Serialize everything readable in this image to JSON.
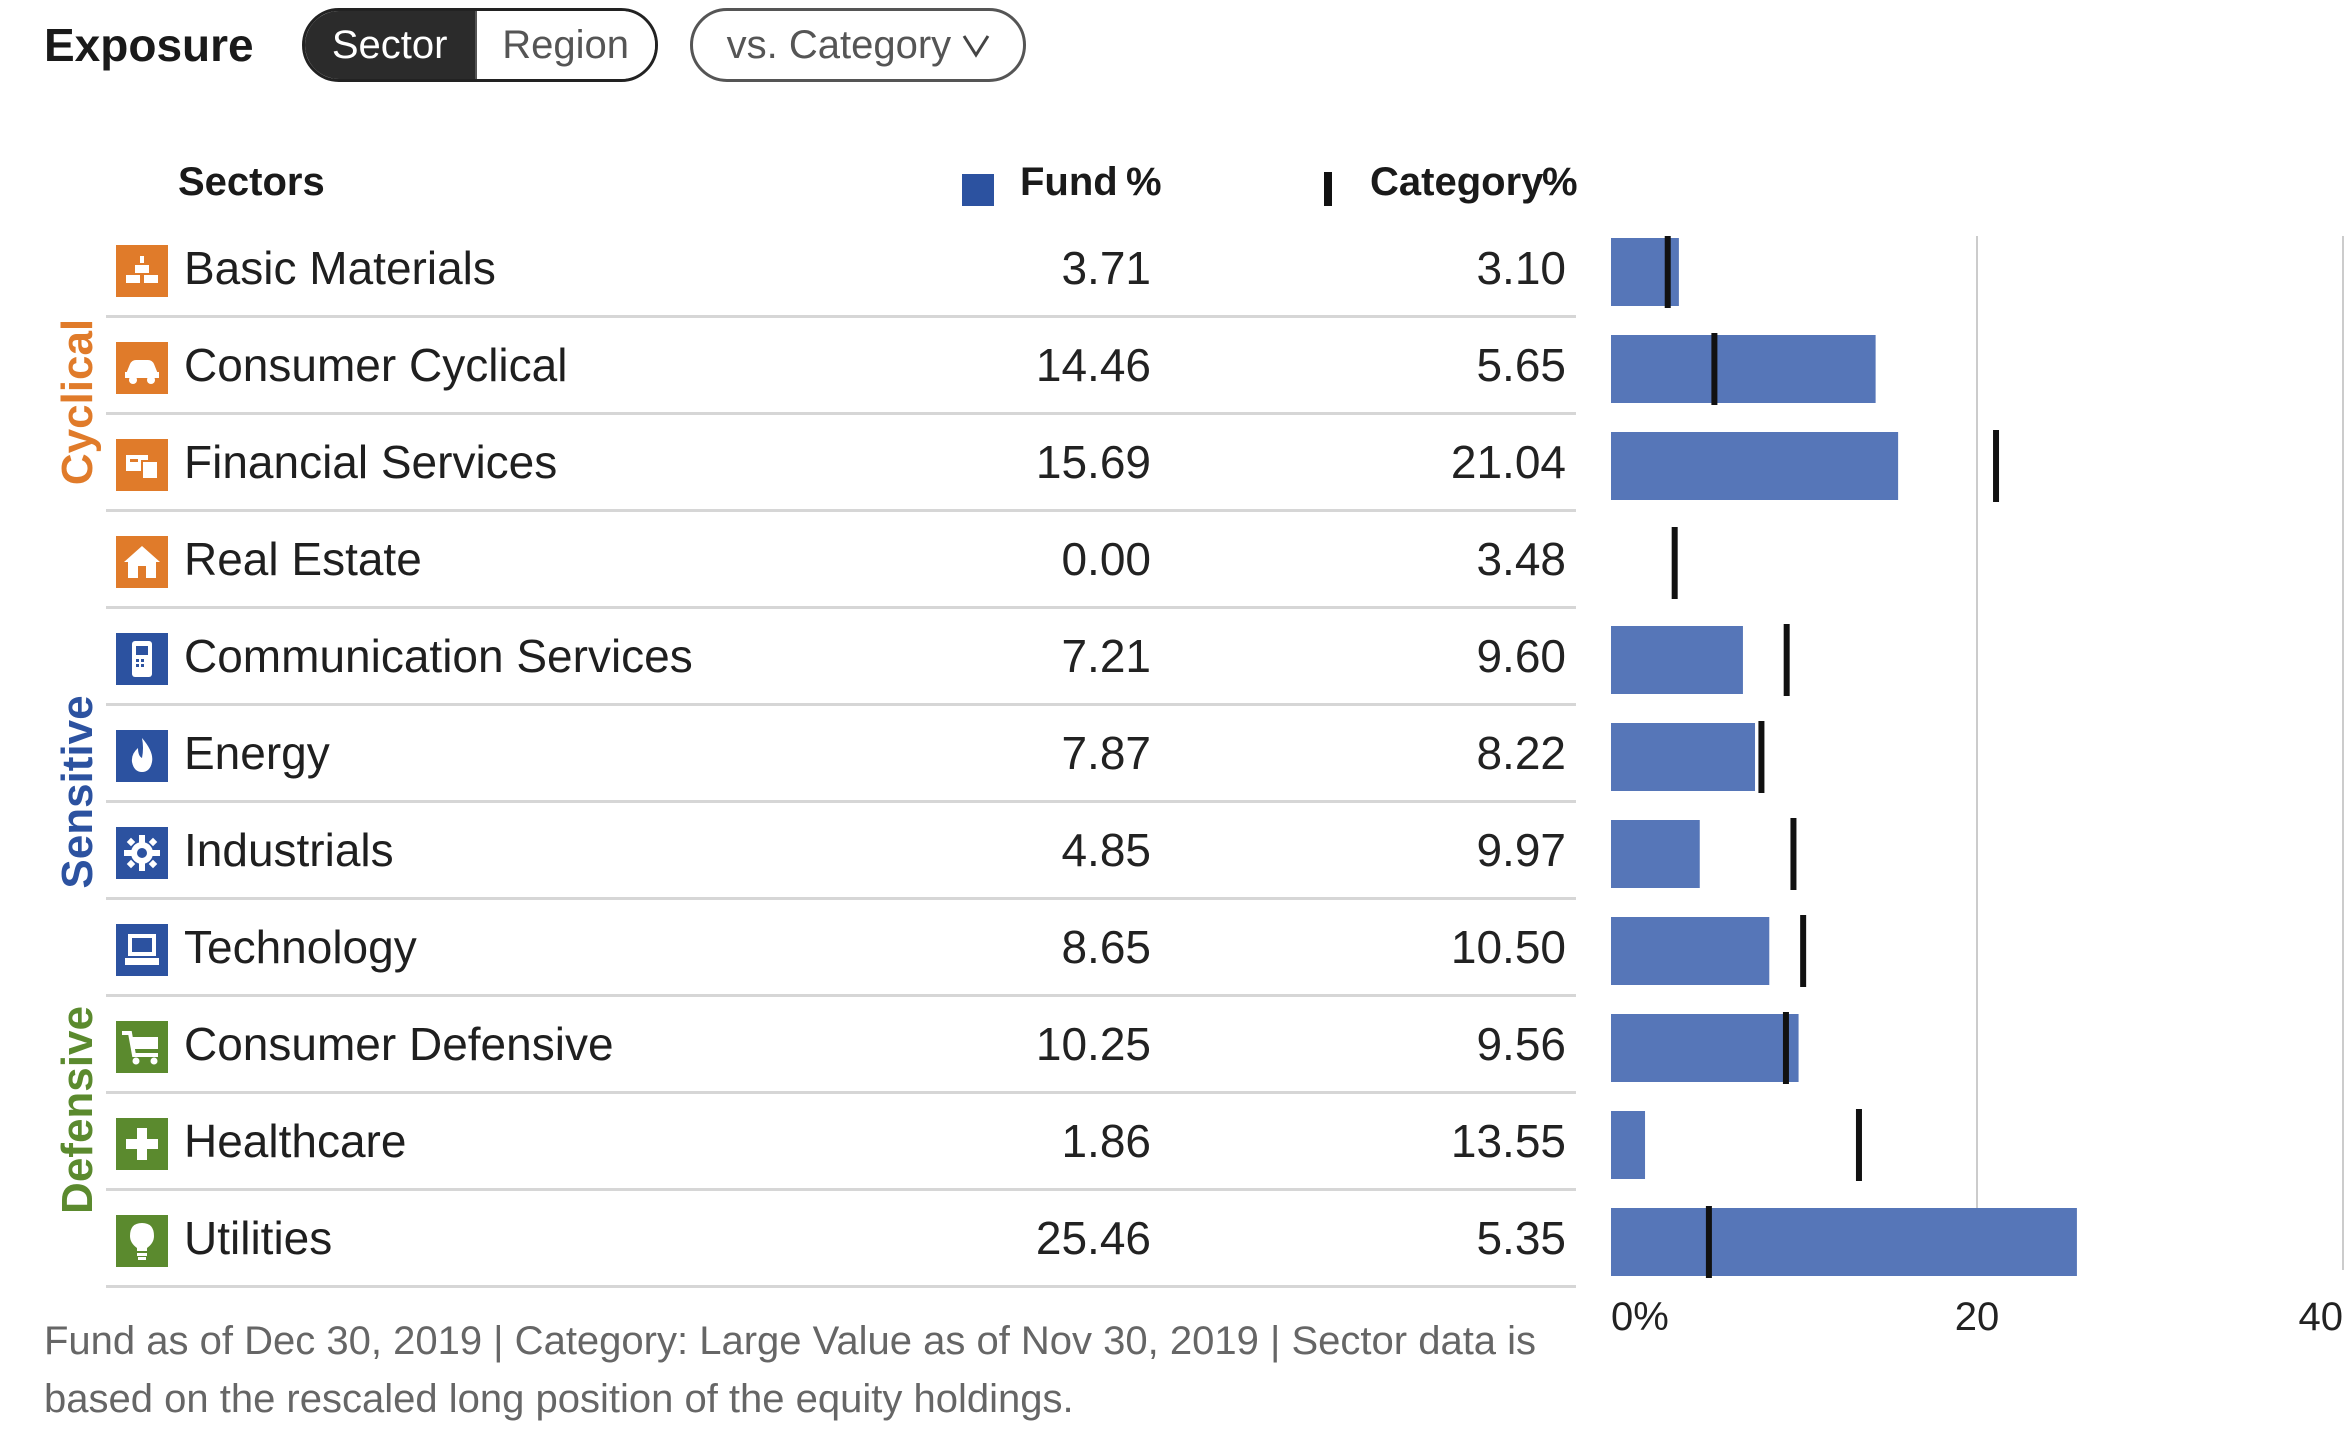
{
  "header": {
    "title": "Exposure",
    "tabs": [
      {
        "label": "Sector",
        "active": true
      },
      {
        "label": "Region",
        "active": false
      }
    ],
    "compare_dropdown": {
      "label": "vs. Category"
    }
  },
  "table": {
    "col_sectors": "Sectors",
    "col_fund": "Fund",
    "col_fund_unit": "%",
    "col_category": "Category",
    "col_category_unit": "%"
  },
  "groups": [
    {
      "label": "Cyclical",
      "color": "#e07b2a"
    },
    {
      "label": "Sensitive",
      "color": "#2c52a0"
    },
    {
      "label": "Defensive",
      "color": "#5b8a2e"
    }
  ],
  "rows": [
    {
      "sector": "Basic Materials",
      "fund": "3.71",
      "category": "3.10",
      "icon": "gold-bars-icon",
      "icon_color": "#e07b2a"
    },
    {
      "sector": "Consumer Cyclical",
      "fund": "14.46",
      "category": "5.65",
      "icon": "car-icon",
      "icon_color": "#e07b2a"
    },
    {
      "sector": "Financial Services",
      "fund": "15.69",
      "category": "21.04",
      "icon": "bank-card-icon",
      "icon_color": "#e07b2a"
    },
    {
      "sector": "Real Estate",
      "fund": "0.00",
      "category": "3.48",
      "icon": "house-icon",
      "icon_color": "#e07b2a"
    },
    {
      "sector": "Communication Services",
      "fund": "7.21",
      "category": "9.60",
      "icon": "phone-icon",
      "icon_color": "#2c52a0"
    },
    {
      "sector": "Energy",
      "fund": "7.87",
      "category": "8.22",
      "icon": "flame-icon",
      "icon_color": "#2c52a0"
    },
    {
      "sector": "Industrials",
      "fund": "4.85",
      "category": "9.97",
      "icon": "gear-icon",
      "icon_color": "#2c52a0"
    },
    {
      "sector": "Technology",
      "fund": "8.65",
      "category": "10.50",
      "icon": "computer-icon",
      "icon_color": "#2c52a0"
    },
    {
      "sector": "Consumer Defensive",
      "fund": "10.25",
      "category": "9.56",
      "icon": "cart-icon",
      "icon_color": "#5b8a2e"
    },
    {
      "sector": "Healthcare",
      "fund": "1.86",
      "category": "13.55",
      "icon": "cross-icon",
      "icon_color": "#5b8a2e"
    },
    {
      "sector": "Utilities",
      "fund": "25.46",
      "category": "5.35",
      "icon": "lightbulb-icon",
      "icon_color": "#5b8a2e"
    }
  ],
  "chart_data": {
    "type": "bar",
    "orientation": "horizontal",
    "categories": [
      "Basic Materials",
      "Consumer Cyclical",
      "Financial Services",
      "Real Estate",
      "Communication Services",
      "Energy",
      "Industrials",
      "Technology",
      "Consumer Defensive",
      "Healthcare",
      "Utilities"
    ],
    "series": [
      {
        "name": "Fund",
        "values": [
          3.71,
          14.46,
          15.69,
          0.0,
          7.21,
          7.87,
          4.85,
          8.65,
          10.25,
          1.86,
          25.46
        ],
        "color": "#5676b8",
        "mark": "bar"
      },
      {
        "name": "Category",
        "values": [
          3.1,
          5.65,
          21.04,
          3.48,
          9.6,
          8.22,
          9.97,
          10.5,
          9.56,
          13.55,
          5.35
        ],
        "color": "#111111",
        "mark": "tick"
      }
    ],
    "xlim": [
      0,
      40
    ],
    "x_ticks": [
      "0%",
      "20",
      "40"
    ],
    "x_tick_values": [
      0,
      20,
      40
    ],
    "gridlines": [
      20,
      40
    ]
  },
  "footnote": "Fund as of Dec 30, 2019 | Category: Large Value as of Nov 30, 2019 | Sector data is based on the rescaled long position of the equity holdings."
}
